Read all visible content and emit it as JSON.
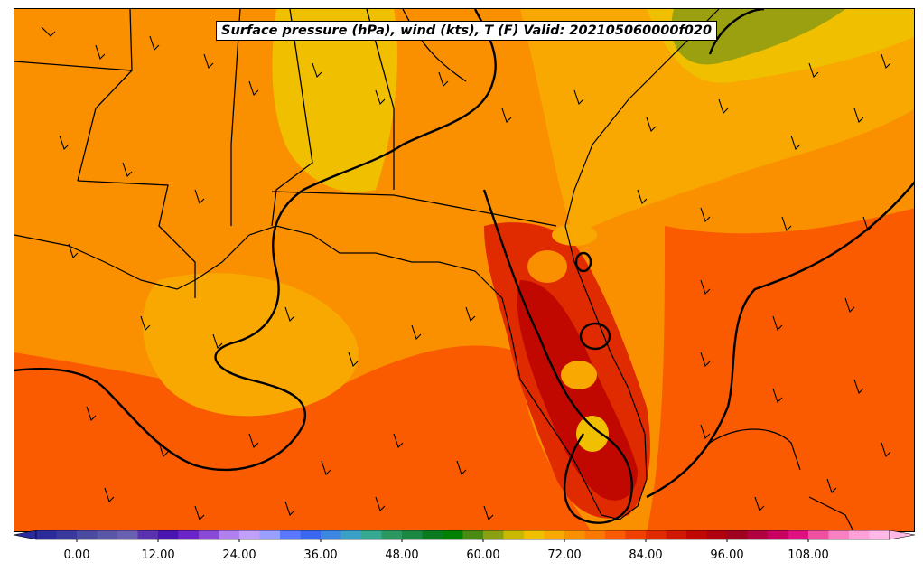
{
  "title": "Surface pressure (hPa), wind (kts), T (F) Valid: 202105060000f020",
  "colorbar": {
    "min": -6,
    "max": 120,
    "step": 3,
    "tick_labels": [
      "0.00",
      "12.00",
      "24.00",
      "36.00",
      "48.00",
      "60.00",
      "72.00",
      "84.00",
      "96.00",
      "108.00"
    ],
    "tick_values": [
      0,
      12,
      24,
      36,
      48,
      60,
      72,
      84,
      96,
      108
    ],
    "colors": [
      "#2b2b9c",
      "#39399e",
      "#4a4aa0",
      "#5a56a8",
      "#6a5fb0",
      "#5a32b0",
      "#4a14b0",
      "#6a24c8",
      "#8a4ad8",
      "#b080f0",
      "#c0a0f8",
      "#9aa0ff",
      "#5a78ff",
      "#3a66f0",
      "#3a86e0",
      "#3aa0c8",
      "#34a890",
      "#2a9860",
      "#1a8840",
      "#0a7a20",
      "#008000",
      "#4a8a10",
      "#8aa010",
      "#c8b800",
      "#f0c000",
      "#f8a800",
      "#fa9000",
      "#fc7800",
      "#fa5a00",
      "#f04000",
      "#e02a00",
      "#d01800",
      "#c00800",
      "#b00010",
      "#a00020",
      "#b00040",
      "#c80060",
      "#e01080",
      "#f050a0",
      "#f880c0",
      "#ffa0d8",
      "#ffb8e8"
    ]
  },
  "map_colors": {
    "temp_60": "#9aa010",
    "temp_63": "#c8b800",
    "temp_66": "#f0c000",
    "temp_69": "#f8a800",
    "temp_72": "#fa9000",
    "temp_75": "#fc7800",
    "temp_78": "#fa5a00",
    "temp_81": "#e02a00",
    "temp_84": "#c00800",
    "temp_87": "#a00000"
  }
}
